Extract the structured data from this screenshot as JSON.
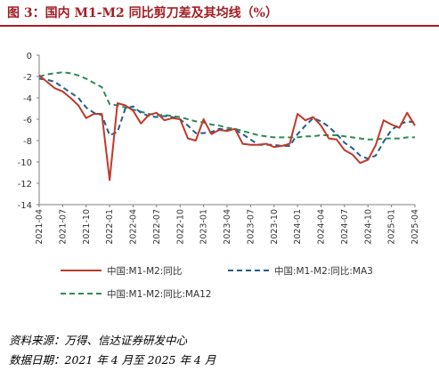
{
  "title": "图 3：国内 M1-M2 同比剪刀差及其均线（%）",
  "footer": {
    "source": "资料来源：万得、信达证券研发中心",
    "period": "数据日期：2021 年 4 月至 2025 年 4 月"
  },
  "colors": {
    "title": "#A21E24",
    "series_main": "#C0392B",
    "series_ma3": "#1F5F8B",
    "series_ma12": "#2E8B57"
  },
  "chart_data": {
    "type": "line",
    "ylim": [
      -14,
      0
    ],
    "yticks": [
      0,
      -2,
      -4,
      -6,
      -8,
      -10,
      -12,
      -14
    ],
    "x": [
      "2021-04",
      "2021-05",
      "2021-06",
      "2021-07",
      "2021-08",
      "2021-09",
      "2021-10",
      "2021-11",
      "2021-12",
      "2022-01",
      "2022-02",
      "2022-03",
      "2022-04",
      "2022-05",
      "2022-06",
      "2022-07",
      "2022-08",
      "2022-09",
      "2022-10",
      "2022-11",
      "2022-12",
      "2023-01",
      "2023-02",
      "2023-03",
      "2023-04",
      "2023-05",
      "2023-06",
      "2023-07",
      "2023-08",
      "2023-09",
      "2023-10",
      "2023-11",
      "2023-12",
      "2024-01",
      "2024-02",
      "2024-03",
      "2024-04",
      "2024-05",
      "2024-06",
      "2024-07",
      "2024-08",
      "2024-09",
      "2024-10",
      "2024-11",
      "2024-12",
      "2025-01",
      "2025-02",
      "2025-03",
      "2025-04"
    ],
    "xtick_labels": [
      "2021-04",
      "2021-07",
      "2021-10",
      "2022-01",
      "2022-04",
      "2022-07",
      "2022-10",
      "2023-01",
      "2023-04",
      "2023-07",
      "2023-10",
      "2024-01",
      "2024-04",
      "2024-07",
      "2024-10",
      "2025-01",
      "2025-04"
    ],
    "legend_position": "bottom",
    "series": [
      {
        "name": "中国:M1-M2:同比",
        "style": "solid",
        "values": [
          -1.9,
          -2.5,
          -3.1,
          -3.4,
          -4.0,
          -4.7,
          -5.9,
          -5.5,
          -5.5,
          -11.7,
          -4.5,
          -4.7,
          -5.2,
          -6.4,
          -5.6,
          -5.4,
          -6.1,
          -5.9,
          -6.0,
          -7.8,
          -8.0,
          -6.0,
          -7.4,
          -7.0,
          -7.1,
          -6.9,
          -8.3,
          -8.4,
          -8.4,
          -8.3,
          -8.6,
          -8.5,
          -8.3,
          -5.5,
          -6.1,
          -5.8,
          -6.6,
          -7.8,
          -7.9,
          -8.9,
          -9.3,
          -10.1,
          -9.8,
          -8.4,
          -6.1,
          -6.5,
          -6.8,
          -5.4,
          -6.6
        ]
      },
      {
        "name": "中国:M1-M2:同比:MA3",
        "style": "dashed",
        "values": [
          -2.2,
          -2.3,
          -2.5,
          -3.0,
          -3.5,
          -4.0,
          -4.9,
          -5.4,
          -5.6,
          -7.5,
          -7.2,
          -5.0,
          -4.8,
          -5.4,
          -5.7,
          -5.8,
          -5.7,
          -5.8,
          -6.0,
          -6.6,
          -7.3,
          -7.3,
          -7.2,
          -6.9,
          -7.0,
          -7.0,
          -7.4,
          -7.9,
          -8.4,
          -8.4,
          -8.4,
          -8.5,
          -8.5,
          -7.4,
          -6.6,
          -5.9,
          -6.2,
          -6.7,
          -7.4,
          -8.2,
          -8.7,
          -9.4,
          -9.7,
          -9.4,
          -8.1,
          -7.0,
          -6.5,
          -6.2,
          -6.3
        ]
      },
      {
        "name": "中国:M1-M2:同比:MA12",
        "style": "dashed",
        "values": [
          -2.0,
          -1.8,
          -1.7,
          -1.6,
          -1.7,
          -1.9,
          -2.2,
          -2.6,
          -3.0,
          -4.6,
          -4.7,
          -4.9,
          -5.1,
          -5.3,
          -5.5,
          -5.6,
          -5.6,
          -5.7,
          -5.8,
          -6.0,
          -6.2,
          -6.3,
          -6.5,
          -6.6,
          -6.8,
          -6.9,
          -7.1,
          -7.3,
          -7.5,
          -7.6,
          -7.7,
          -7.7,
          -7.7,
          -7.7,
          -7.6,
          -7.6,
          -7.5,
          -7.5,
          -7.5,
          -7.6,
          -7.7,
          -7.8,
          -7.9,
          -7.9,
          -7.8,
          -7.8,
          -7.8,
          -7.7,
          -7.7
        ]
      }
    ]
  }
}
